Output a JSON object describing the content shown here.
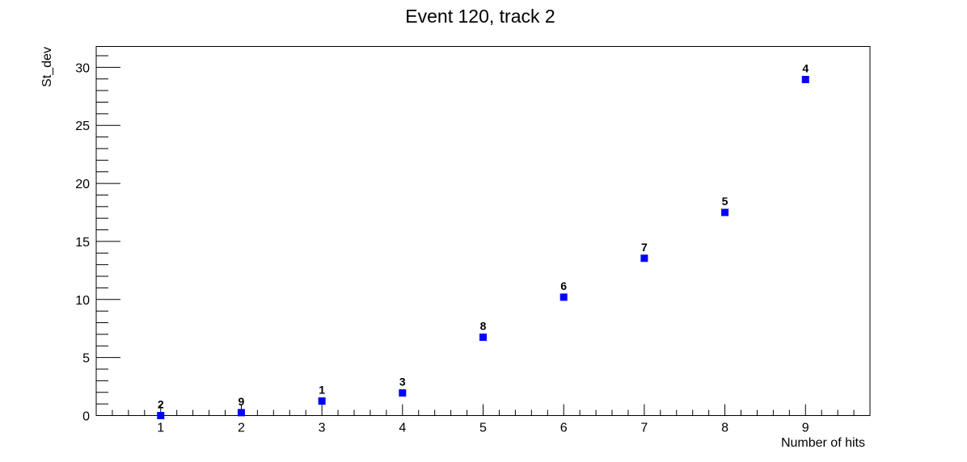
{
  "chart_data": {
    "type": "scatter",
    "title": "Event 120, track 2",
    "xlabel": "Number of hits",
    "ylabel": "St_dev",
    "xlim": [
      0.2,
      9.8
    ],
    "ylim": [
      0,
      31.8
    ],
    "x_ticks": [
      1,
      2,
      3,
      4,
      5,
      6,
      7,
      8,
      9
    ],
    "y_ticks": [
      0,
      5,
      10,
      15,
      20,
      25,
      30
    ],
    "grid": false,
    "marker": "square",
    "marker_color": "#0000ff",
    "points": [
      {
        "x": 1,
        "y": 0.0,
        "label": "2"
      },
      {
        "x": 2,
        "y": 0.25,
        "label": "9"
      },
      {
        "x": 3,
        "y": 1.25,
        "label": "1"
      },
      {
        "x": 4,
        "y": 1.95,
        "label": "3"
      },
      {
        "x": 5,
        "y": 6.75,
        "label": "8"
      },
      {
        "x": 6,
        "y": 10.2,
        "label": "6"
      },
      {
        "x": 7,
        "y": 13.55,
        "label": "7"
      },
      {
        "x": 8,
        "y": 17.5,
        "label": "5"
      },
      {
        "x": 9,
        "y": 28.95,
        "label": "4"
      }
    ]
  }
}
